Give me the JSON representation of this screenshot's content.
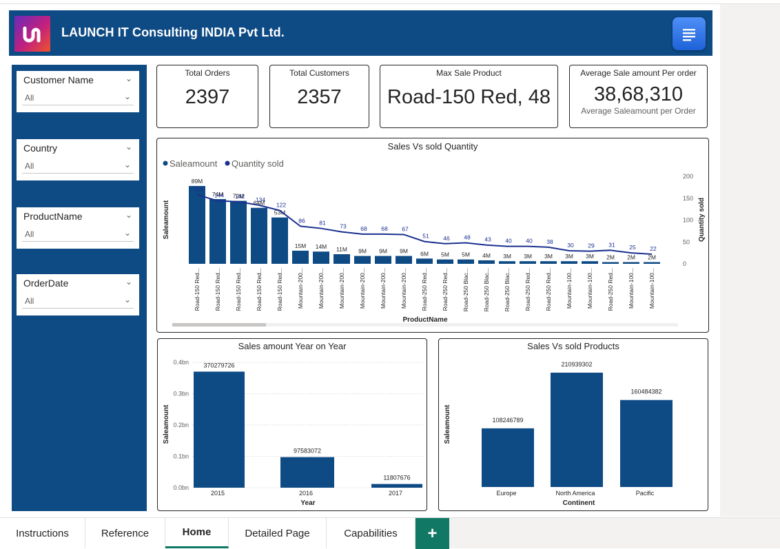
{
  "header": {
    "company": "LAUNCH IT Consulting INDIA Pvt Ltd.",
    "logo_icon": "launch-it-logo",
    "doc_icon": "document-icon"
  },
  "slicers": [
    {
      "title": "Customer Name",
      "value": "All"
    },
    {
      "title": "Country",
      "value": "All"
    },
    {
      "title": "ProductName",
      "value": "All"
    },
    {
      "title": "OrderDate",
      "value": "All"
    }
  ],
  "cards": {
    "total_orders": {
      "title": "Total Orders",
      "value": "2397"
    },
    "total_customers": {
      "title": "Total Customers",
      "value": "2357"
    },
    "max_sale_product": {
      "title": "Max Sale Product",
      "value": "Road-150 Red, 48"
    },
    "avg_sale": {
      "title": "Average Sale amount Per order",
      "value": "38,68,310",
      "subtitle": "Average Saleamount per Order"
    }
  },
  "tabs": [
    "Instructions",
    "Reference",
    "Home",
    "Detailed Page",
    "Capabilities"
  ],
  "active_tab": "Home",
  "add_tab_label": "+",
  "colors": {
    "brand": "#0e4a84",
    "bar": "#0e4a84",
    "line": "#1a2f8f",
    "tab_accent": "#117865"
  },
  "chart_data": [
    {
      "type": "bar",
      "title": "Sales Vs sold Quantity",
      "legend": [
        "Saleamount",
        "Quantity sold"
      ],
      "legend_position": "top-left",
      "xlabel": "ProductName",
      "ylabel": "Saleamount",
      "y2label": "Quantity sold",
      "y2_ticks": [
        "200",
        "150",
        "100",
        "50",
        "0"
      ],
      "y2lim": [
        0,
        200
      ],
      "categories": [
        "Road-150 Red...",
        "Road-150 Red...",
        "Road-150 Red...",
        "Road-150 Red...",
        "Road-150 Red...",
        "Mountain-200...",
        "Mountain-200...",
        "Mountain-200...",
        "Mountain-200...",
        "Mountain-200...",
        "Mountain-200...",
        "Road-250 Red...",
        "Road-250 Red...",
        "Road-250 Blac...",
        "Road-250 Blac...",
        "Road-250 Blac...",
        "Road-250 Red...",
        "Road-250 Red...",
        "Mountain-100...",
        "Mountain-100...",
        "Road-250 Red...",
        "Mountain-100...",
        "Mountain-100..."
      ],
      "bar_labels": [
        "89M",
        "74M",
        "72M",
        "64M",
        "53M",
        "15M",
        "14M",
        "11M",
        "9M",
        "9M",
        "9M",
        "6M",
        "5M",
        "5M",
        "4M",
        "3M",
        "3M",
        "3M",
        "3M",
        "3M",
        "2M",
        "2M",
        "2M"
      ],
      "series": [
        {
          "name": "Saleamount",
          "values": [
            89,
            74,
            72,
            64,
            53,
            15,
            14,
            11,
            9,
            9,
            9,
            6,
            5,
            5,
            4,
            3,
            3,
            3,
            3,
            3,
            2,
            2,
            2
          ],
          "unit": "M"
        },
        {
          "name": "Quantity sold",
          "values": [
            158,
            144,
            142,
            134,
            122,
            86,
            81,
            73,
            68,
            68,
            67,
            51,
            46,
            48,
            43,
            40,
            40,
            38,
            30,
            29,
            31,
            25,
            22
          ]
        }
      ]
    },
    {
      "type": "bar",
      "title": "Sales amount Year on Year",
      "xlabel": "Year",
      "ylabel": "Saleamount",
      "y_ticks": [
        "0.4bn",
        "0.3bn",
        "0.2bn",
        "0.1bn",
        "0.0bn"
      ],
      "ylim": [
        0,
        400000000
      ],
      "categories": [
        "2015",
        "2016",
        "2017"
      ],
      "values": [
        370279726,
        97583072,
        11807676
      ]
    },
    {
      "type": "bar",
      "title": "Sales Vs sold Products",
      "xlabel": "Continent",
      "ylabel": "Saleamount",
      "categories": [
        "Europe",
        "North America",
        "Pacific"
      ],
      "values": [
        108246789,
        210939302,
        160484382
      ]
    }
  ]
}
